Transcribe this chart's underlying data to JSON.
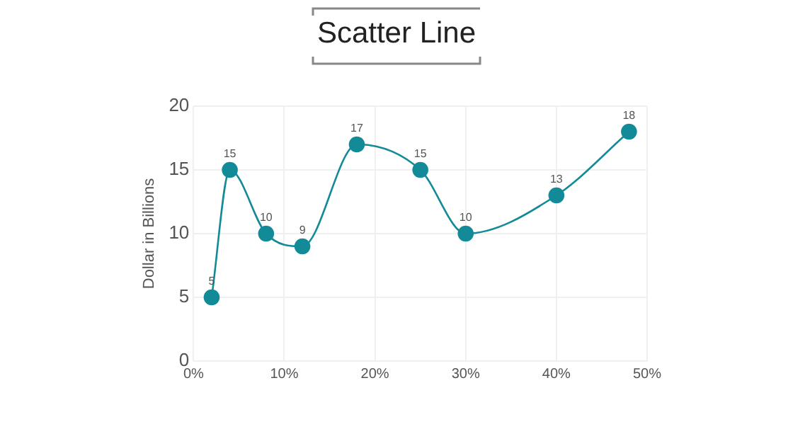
{
  "chart_data": {
    "type": "line",
    "title": "Scatter Line",
    "ylabel": "Dollar in Billions",
    "x": [
      2,
      4,
      8,
      12,
      18,
      25,
      30,
      40,
      48
    ],
    "series": [
      {
        "color": "#138a98",
        "values": [
          5,
          15,
          10,
          9,
          17,
          15,
          10,
          13,
          18
        ]
      }
    ],
    "xlim": [
      0,
      50
    ],
    "xticks": [
      {
        "value": 0,
        "label": "0%"
      },
      {
        "value": 10,
        "label": "10%"
      },
      {
        "value": 20,
        "label": "20%"
      },
      {
        "value": 30,
        "label": "30%"
      },
      {
        "value": 40,
        "label": "40%"
      },
      {
        "value": 50,
        "label": "50%"
      }
    ],
    "ylim": [
      0,
      20
    ],
    "yticks": [
      0,
      5,
      10,
      15,
      20
    ],
    "grid": true,
    "marker": "circle",
    "line_style": "solid",
    "data_labels": true,
    "legend": false
  }
}
